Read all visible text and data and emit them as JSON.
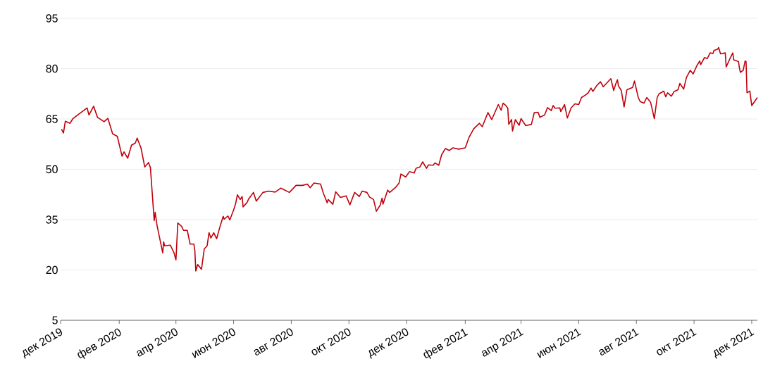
{
  "chart_data": {
    "type": "line",
    "color": "#c0000b",
    "line_style": "solid",
    "grid": "y",
    "xlim": [
      "2019-12-01",
      "2021-12-07"
    ],
    "ylim": [
      5,
      95
    ],
    "yticks": [
      5,
      20,
      35,
      50,
      65,
      80,
      95
    ],
    "xticks": [
      {
        "value": "2019-12-01",
        "label": "дек 2019"
      },
      {
        "value": "2020-02-01",
        "label": "фев 2020"
      },
      {
        "value": "2020-04-01",
        "label": "апр 2020"
      },
      {
        "value": "2020-06-01",
        "label": "июн 2020"
      },
      {
        "value": "2020-08-01",
        "label": "авг 2020"
      },
      {
        "value": "2020-10-01",
        "label": "окт 2020"
      },
      {
        "value": "2020-12-01",
        "label": "дек 2020"
      },
      {
        "value": "2021-02-01",
        "label": "фев 2021"
      },
      {
        "value": "2021-04-01",
        "label": "апр 2021"
      },
      {
        "value": "2021-06-01",
        "label": "июн 2021"
      },
      {
        "value": "2021-08-01",
        "label": "авг 2021"
      },
      {
        "value": "2021-10-01",
        "label": "окт 2021"
      },
      {
        "value": "2021-12-01",
        "label": "дек 2021"
      }
    ],
    "x": [
      "2019-12-02",
      "2019-12-04",
      "2019-12-06",
      "2019-12-11",
      "2019-12-14",
      "2019-12-20",
      "2019-12-29",
      "2019-12-31",
      "2020-01-05",
      "2020-01-09",
      "2020-01-16",
      "2020-01-20",
      "2020-01-25",
      "2020-01-30",
      "2020-02-04",
      "2020-02-06",
      "2020-02-10",
      "2020-02-14",
      "2020-02-18",
      "2020-02-20",
      "2020-02-24",
      "2020-02-28",
      "2020-03-03",
      "2020-03-05",
      "2020-03-09",
      "2020-03-10",
      "2020-03-12",
      "2020-03-18",
      "2020-03-19",
      "2020-03-20",
      "2020-03-26",
      "2020-03-30",
      "2020-04-01",
      "2020-04-03",
      "2020-04-07",
      "2020-04-09",
      "2020-04-13",
      "2020-04-16",
      "2020-04-20",
      "2020-04-21",
      "2020-04-22",
      "2020-04-24",
      "2020-04-28",
      "2020-05-01",
      "2020-05-04",
      "2020-05-06",
      "2020-05-08",
      "2020-05-11",
      "2020-05-14",
      "2020-05-18",
      "2020-05-21",
      "2020-05-22",
      "2020-05-26",
      "2020-05-28",
      "2020-06-01",
      "2020-06-03",
      "2020-06-05",
      "2020-06-08",
      "2020-06-10",
      "2020-06-11",
      "2020-06-15",
      "2020-06-17",
      "2020-06-22",
      "2020-06-25",
      "2020-07-02",
      "2020-07-08",
      "2020-07-15",
      "2020-07-21",
      "2020-07-30",
      "2020-08-06",
      "2020-08-13",
      "2020-08-18",
      "2020-08-21",
      "2020-08-25",
      "2020-09-01",
      "2020-09-04",
      "2020-09-08",
      "2020-09-09",
      "2020-09-14",
      "2020-09-17",
      "2020-09-22",
      "2020-09-28",
      "2020-10-02",
      "2020-10-07",
      "2020-10-12",
      "2020-10-15",
      "2020-10-20",
      "2020-10-23",
      "2020-10-27",
      "2020-10-30",
      "2020-11-03",
      "2020-11-05",
      "2020-11-06",
      "2020-11-11",
      "2020-11-13",
      "2020-11-19",
      "2020-11-23",
      "2020-11-25",
      "2020-11-30",
      "2020-12-04",
      "2020-12-09",
      "2020-12-11",
      "2020-12-15",
      "2020-12-18",
      "2020-12-22",
      "2020-12-24",
      "2020-12-29",
      "2020-12-31",
      "2021-01-04",
      "2021-01-07",
      "2021-01-11",
      "2021-01-15",
      "2021-01-19",
      "2021-01-25",
      "2021-02-01",
      "2021-02-05",
      "2021-02-10",
      "2021-02-16",
      "2021-02-19",
      "2021-02-25",
      "2021-03-01",
      "2021-03-08",
      "2021-03-11",
      "2021-03-13",
      "2021-03-16",
      "2021-03-18",
      "2021-03-19",
      "2021-03-22",
      "2021-03-23",
      "2021-03-26",
      "2021-03-30",
      "2021-04-01",
      "2021-04-06",
      "2021-04-12",
      "2021-04-15",
      "2021-04-19",
      "2021-04-21",
      "2021-04-26",
      "2021-04-29",
      "2021-05-03",
      "2021-05-05",
      "2021-05-07",
      "2021-05-12",
      "2021-05-13",
      "2021-05-17",
      "2021-05-20",
      "2021-05-24",
      "2021-05-28",
      "2021-06-01",
      "2021-06-04",
      "2021-06-08",
      "2021-06-11",
      "2021-06-14",
      "2021-06-16",
      "2021-06-20",
      "2021-06-24",
      "2021-06-27",
      "2021-07-05",
      "2021-07-08",
      "2021-07-10",
      "2021-07-12",
      "2021-07-13",
      "2021-07-16",
      "2021-07-19",
      "2021-07-22",
      "2021-07-28",
      "2021-07-30",
      "2021-08-03",
      "2021-08-05",
      "2021-08-09",
      "2021-08-12",
      "2021-08-16",
      "2021-08-20",
      "2021-08-23",
      "2021-08-25",
      "2021-08-30",
      "2021-09-01",
      "2021-09-03",
      "2021-09-07",
      "2021-09-10",
      "2021-09-14",
      "2021-09-16",
      "2021-09-20",
      "2021-09-23",
      "2021-09-27",
      "2021-09-30",
      "2021-10-04",
      "2021-10-07",
      "2021-10-08",
      "2021-10-12",
      "2021-10-15",
      "2021-10-18",
      "2021-10-21",
      "2021-10-22",
      "2021-10-26",
      "2021-10-27",
      "2021-10-29",
      "2021-11-03",
      "2021-11-04",
      "2021-11-08",
      "2021-11-11",
      "2021-11-12",
      "2021-11-17",
      "2021-11-18",
      "2021-11-19",
      "2021-11-22",
      "2021-11-24",
      "2021-11-25",
      "2021-11-26",
      "2021-11-29",
      "2021-12-01",
      "2021-12-07"
    ],
    "values": [
      62.0,
      60.8,
      64.3,
      63.7,
      65.1,
      66.4,
      68.3,
      66.2,
      68.8,
      65.5,
      64.2,
      65.2,
      60.6,
      59.8,
      53.9,
      55.2,
      53.3,
      57.2,
      57.8,
      59.3,
      56.4,
      50.7,
      52.0,
      50.5,
      34.7,
      37.2,
      33.3,
      25.1,
      28.4,
      27.2,
      27.4,
      25.1,
      23.0,
      34.0,
      33.0,
      31.8,
      31.8,
      27.7,
      27.7,
      25.8,
      19.7,
      21.6,
      20.2,
      26.3,
      27.2,
      31.1,
      29.5,
      31.1,
      29.3,
      33.3,
      36.0,
      35.1,
      36.1,
      34.9,
      37.9,
      39.6,
      42.4,
      41.0,
      41.9,
      38.8,
      40.0,
      41.2,
      43.1,
      40.5,
      43.1,
      43.5,
      43.2,
      44.4,
      43.1,
      45.2,
      45.2,
      45.6,
      44.5,
      45.9,
      45.6,
      42.8,
      40.0,
      41.0,
      39.6,
      43.3,
      41.6,
      42.1,
      39.4,
      43.1,
      41.9,
      43.5,
      43.1,
      41.7,
      41.0,
      37.5,
      39.3,
      41.4,
      39.6,
      43.8,
      43.1,
      44.5,
      45.9,
      48.6,
      47.7,
      49.3,
      48.9,
      50.3,
      50.7,
      52.2,
      50.3,
      51.3,
      51.2,
      51.9,
      51.2,
      54.3,
      56.2,
      55.6,
      56.4,
      56.0,
      56.4,
      59.5,
      62.1,
      63.7,
      62.7,
      66.9,
      64.8,
      69.3,
      67.6,
      69.7,
      69.0,
      68.2,
      63.4,
      64.8,
      61.4,
      64.8,
      63.1,
      65.1,
      63.0,
      63.4,
      66.9,
      67.0,
      65.5,
      66.2,
      68.4,
      67.5,
      69.0,
      68.2,
      68.3,
      67.2,
      69.3,
      65.3,
      68.3,
      69.5,
      69.3,
      71.4,
      72.1,
      72.8,
      74.2,
      73.2,
      74.9,
      76.1,
      74.6,
      77.0,
      73.5,
      75.3,
      76.7,
      74.9,
      73.5,
      68.6,
      73.7,
      74.4,
      76.3,
      71.4,
      70.2,
      69.7,
      71.4,
      70.0,
      65.1,
      71.4,
      72.5,
      73.3,
      71.6,
      72.8,
      71.8,
      73.2,
      73.7,
      75.6,
      73.9,
      77.4,
      79.5,
      78.4,
      80.9,
      82.3,
      81.2,
      83.3,
      83.0,
      84.7,
      84.5,
      85.4,
      85.8,
      86.3,
      84.4,
      84.7,
      80.5,
      83.0,
      84.7,
      82.6,
      82.1,
      80.2,
      78.9,
      79.5,
      82.3,
      82.1,
      72.8,
      73.3,
      69.0,
      71.4
    ]
  }
}
